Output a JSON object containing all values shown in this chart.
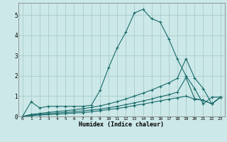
{
  "xlabel": "Humidex (Indice chaleur)",
  "background_color": "#cce8e8",
  "grid_color": "#aacccc",
  "line_color": "#1a6b6b",
  "xlim": [
    -0.5,
    23.5
  ],
  "ylim": [
    0,
    5.6
  ],
  "xticks": [
    0,
    1,
    2,
    3,
    4,
    5,
    6,
    7,
    8,
    9,
    10,
    11,
    12,
    13,
    14,
    15,
    16,
    17,
    18,
    19,
    20,
    21,
    22,
    23
  ],
  "yticks": [
    0,
    1,
    2,
    3,
    4,
    5
  ],
  "line1_x": [
    0,
    1,
    2,
    3,
    4,
    5,
    6,
    7,
    8,
    9,
    10,
    11,
    12,
    13,
    14,
    15,
    16,
    17,
    18,
    19,
    20,
    21,
    22,
    23
  ],
  "line1_y": [
    0.0,
    0.72,
    0.42,
    0.5,
    0.5,
    0.5,
    0.5,
    0.5,
    0.55,
    1.28,
    2.4,
    3.38,
    4.15,
    5.1,
    5.28,
    4.82,
    4.65,
    3.82,
    2.82,
    2.0,
    1.38,
    0.62,
    0.95,
    0.95
  ],
  "line2_x": [
    0,
    1,
    2,
    3,
    4,
    5,
    6,
    7,
    8,
    9,
    10,
    11,
    12,
    13,
    14,
    15,
    16,
    17,
    18,
    19,
    20,
    21,
    22,
    23
  ],
  "line2_y": [
    0.0,
    0.1,
    0.15,
    0.2,
    0.24,
    0.28,
    0.33,
    0.38,
    0.45,
    0.52,
    0.62,
    0.73,
    0.86,
    1.0,
    1.15,
    1.3,
    1.48,
    1.66,
    1.88,
    2.85,
    1.9,
    1.38,
    0.62,
    0.95
  ],
  "line3_x": [
    0,
    1,
    2,
    3,
    4,
    5,
    6,
    7,
    8,
    9,
    10,
    11,
    12,
    13,
    14,
    15,
    16,
    17,
    18,
    19,
    20,
    21,
    22,
    23
  ],
  "line3_y": [
    0.0,
    0.07,
    0.1,
    0.14,
    0.17,
    0.2,
    0.23,
    0.27,
    0.32,
    0.36,
    0.43,
    0.5,
    0.58,
    0.67,
    0.76,
    0.86,
    0.97,
    1.07,
    1.2,
    1.92,
    0.88,
    0.8,
    0.62,
    0.95
  ],
  "line4_x": [
    0,
    1,
    2,
    3,
    4,
    5,
    6,
    7,
    8,
    9,
    10,
    11,
    12,
    13,
    14,
    15,
    16,
    17,
    18,
    19,
    20,
    21,
    22,
    23
  ],
  "line4_y": [
    0.0,
    0.04,
    0.07,
    0.09,
    0.11,
    0.14,
    0.17,
    0.19,
    0.23,
    0.28,
    0.34,
    0.39,
    0.46,
    0.54,
    0.61,
    0.69,
    0.77,
    0.85,
    0.92,
    1.0,
    0.85,
    0.8,
    0.62,
    0.95
  ]
}
